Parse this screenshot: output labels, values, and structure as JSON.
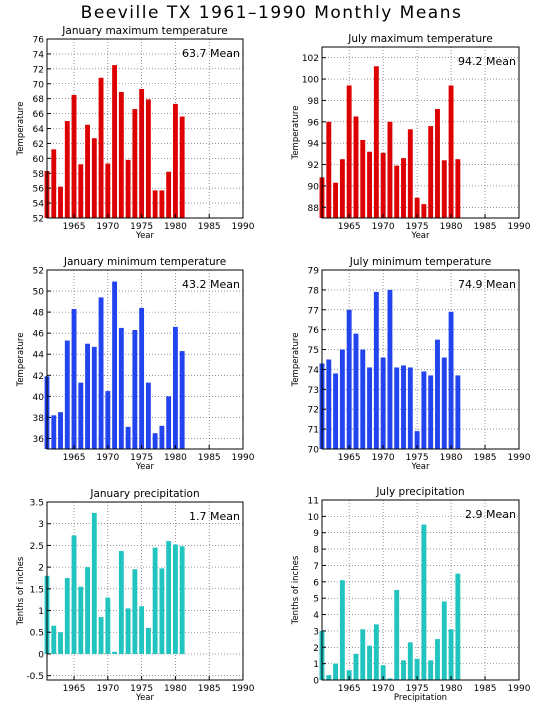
{
  "title": "Beeville TX   1961–1990  Monthly Means",
  "chart_data": [
    {
      "type": "bar",
      "title": "January maximum temperature",
      "xlabel": "Year",
      "ylabel": "Temperature",
      "mean_label": "63.7  Mean",
      "color": "#dd0000",
      "ylim": [
        52,
        76
      ],
      "yticks": [
        52,
        54,
        56,
        58,
        60,
        62,
        64,
        66,
        68,
        70,
        72,
        74,
        76
      ],
      "xlim": [
        1961,
        1990
      ],
      "xticks": [
        1965,
        1970,
        1975,
        1980,
        1985,
        1990
      ],
      "x": [
        1961,
        1962,
        1963,
        1964,
        1965,
        1966,
        1967,
        1968,
        1969,
        1970,
        1971,
        1972,
        1973,
        1974,
        1975,
        1976,
        1977,
        1978,
        1979,
        1980,
        1981
      ],
      "values": [
        58.3,
        61.2,
        56.2,
        65.0,
        68.5,
        59.2,
        64.5,
        62.7,
        70.8,
        59.3,
        72.5,
        68.9,
        59.8,
        66.6,
        69.3,
        67.9,
        55.7,
        55.7,
        58.2,
        67.3,
        65.6
      ]
    },
    {
      "type": "bar",
      "title": "July maximum temperature",
      "xlabel": "Year",
      "ylabel": "Temperature",
      "mean_label": "94.2  Mean",
      "color": "#dd0000",
      "ylim": [
        87,
        103
      ],
      "yticks": [
        88,
        90,
        92,
        94,
        96,
        98,
        100,
        102
      ],
      "xlim": [
        1961,
        1990
      ],
      "xticks": [
        1965,
        1970,
        1975,
        1980,
        1985,
        1990
      ],
      "x": [
        1961,
        1962,
        1963,
        1964,
        1965,
        1966,
        1967,
        1968,
        1969,
        1970,
        1971,
        1972,
        1973,
        1974,
        1975,
        1976,
        1977,
        1978,
        1979,
        1980,
        1981
      ],
      "values": [
        90.8,
        96.0,
        90.3,
        92.5,
        99.4,
        96.5,
        94.3,
        93.2,
        101.2,
        93.1,
        96.0,
        91.9,
        92.6,
        95.3,
        88.9,
        88.3,
        95.6,
        97.2,
        92.4,
        99.4,
        92.5
      ]
    },
    {
      "type": "bar",
      "title": "January minimum temperature",
      "xlabel": "Year",
      "ylabel": "Temperature",
      "mean_label": "43.2  Mean",
      "color": "#2244ee",
      "ylim": [
        35,
        52
      ],
      "yticks": [
        36,
        38,
        40,
        42,
        44,
        46,
        48,
        50,
        52
      ],
      "xlim": [
        1961,
        1990
      ],
      "xticks": [
        1965,
        1970,
        1975,
        1980,
        1985,
        1990
      ],
      "x": [
        1961,
        1962,
        1963,
        1964,
        1965,
        1966,
        1967,
        1968,
        1969,
        1970,
        1971,
        1972,
        1973,
        1974,
        1975,
        1976,
        1977,
        1978,
        1979,
        1980,
        1981
      ],
      "values": [
        41.9,
        38.2,
        38.5,
        45.3,
        48.3,
        41.3,
        45.0,
        44.7,
        49.4,
        40.5,
        50.9,
        46.5,
        37.1,
        46.3,
        48.4,
        41.3,
        36.5,
        37.2,
        40.0,
        46.6,
        44.3
      ]
    },
    {
      "type": "bar",
      "title": "July minimum temperature",
      "xlabel": "Year",
      "ylabel": "Temperature",
      "mean_label": "74.9  Mean",
      "color": "#2244ee",
      "ylim": [
        70,
        79
      ],
      "yticks": [
        70,
        71,
        72,
        73,
        74,
        75,
        76,
        77,
        78,
        79
      ],
      "xlim": [
        1961,
        1990
      ],
      "xticks": [
        1965,
        1970,
        1975,
        1980,
        1985,
        1990
      ],
      "x": [
        1961,
        1962,
        1963,
        1964,
        1965,
        1966,
        1967,
        1968,
        1969,
        1970,
        1971,
        1972,
        1973,
        1974,
        1975,
        1976,
        1977,
        1978,
        1979,
        1980,
        1981
      ],
      "values": [
        74.3,
        74.5,
        73.8,
        75.0,
        77.0,
        75.8,
        75.0,
        74.1,
        77.9,
        74.6,
        78.0,
        74.1,
        74.2,
        74.1,
        70.9,
        73.9,
        73.7,
        75.5,
        74.6,
        76.9,
        73.7
      ]
    },
    {
      "type": "bar",
      "title": "January precipitation",
      "xlabel": "Year",
      "ylabel": "Tenths of inches",
      "mean_label": "1.7  Mean",
      "color": "#22c4c0",
      "ylim": [
        -0.6,
        3.5
      ],
      "yticks": [
        -0.5,
        0,
        0.5,
        1,
        1.5,
        2,
        2.5,
        3,
        3.5
      ],
      "xlim": [
        1961,
        1990
      ],
      "xticks": [
        1965,
        1970,
        1975,
        1980,
        1985,
        1990
      ],
      "x": [
        1961,
        1962,
        1963,
        1964,
        1965,
        1966,
        1967,
        1968,
        1969,
        1970,
        1971,
        1972,
        1973,
        1974,
        1975,
        1976,
        1977,
        1978,
        1979,
        1980,
        1981
      ],
      "values": [
        1.8,
        0.65,
        0.5,
        1.75,
        2.73,
        1.55,
        2.0,
        3.25,
        0.85,
        1.3,
        0.05,
        2.37,
        1.05,
        1.95,
        1.1,
        0.6,
        2.45,
        1.97,
        2.6,
        2.52,
        2.48
      ]
    },
    {
      "type": "bar",
      "title": "July precipitation",
      "xlabel": "Precipitation",
      "ylabel": "Tenths of inches",
      "mean_label": "2.9  Mean",
      "color": "#22c4c0",
      "ylim": [
        0,
        11
      ],
      "yticks": [
        0,
        1,
        2,
        3,
        4,
        5,
        6,
        7,
        8,
        9,
        10,
        11
      ],
      "xlim": [
        1961,
        1990
      ],
      "xticks": [
        1965,
        1970,
        1975,
        1980,
        1985,
        1990
      ],
      "x": [
        1961,
        1962,
        1963,
        1964,
        1965,
        1966,
        1967,
        1968,
        1969,
        1970,
        1971,
        1972,
        1973,
        1974,
        1975,
        1976,
        1977,
        1978,
        1979,
        1980,
        1981
      ],
      "values": [
        3.0,
        0.3,
        1.0,
        6.1,
        0.6,
        1.6,
        3.1,
        2.1,
        3.4,
        0.9,
        0.1,
        5.5,
        1.2,
        2.3,
        1.3,
        9.5,
        1.2,
        2.5,
        4.8,
        3.1,
        6.5
      ]
    }
  ]
}
